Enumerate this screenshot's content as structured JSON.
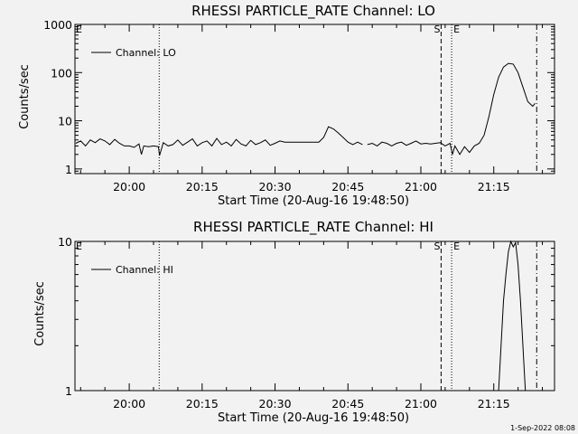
{
  "footer": {
    "timestamp": "1-Sep-2022 08:08"
  },
  "chart_data": [
    {
      "type": "line",
      "title": "RHESSI PARTICLE_RATE Channel: LO",
      "xlabel": "Start Time (20-Aug-16 19:48:50)",
      "ylabel": "Counts/sec",
      "yscale": "log",
      "ylim": [
        0.8,
        1000
      ],
      "y_ticks": [
        1,
        10,
        100,
        1000
      ],
      "y_tick_labels": [
        "1",
        "10",
        "100",
        "1000"
      ],
      "xlim": [
        "19:48:50",
        "21:27:30"
      ],
      "x_ticks": [
        "20:00",
        "20:15",
        "20:30",
        "20:45",
        "21:00",
        "21:15"
      ],
      "legend": {
        "position": "top-left",
        "entries": [
          "Channel: LO"
        ]
      },
      "markers": [
        {
          "label": "E",
          "time": "19:48:50",
          "style": "none"
        },
        {
          "label": "",
          "time": "20:06:10",
          "style": "dotted"
        },
        {
          "label": "S",
          "time": "21:04:10",
          "style": "dashed"
        },
        {
          "label": "E",
          "time": "21:06:20",
          "style": "dotted"
        },
        {
          "label": "",
          "time": "21:23:50",
          "style": "dashdot"
        }
      ],
      "series": [
        {
          "segments": [
            [
              [
                "19:49",
                3.4
              ],
              [
                "19:50",
                3.8
              ],
              [
                "19:51",
                3.0
              ],
              [
                "19:52",
                4.0
              ],
              [
                "19:53",
                3.5
              ],
              [
                "19:54",
                4.2
              ],
              [
                "19:55",
                3.8
              ],
              [
                "19:56",
                3.2
              ],
              [
                "19:57",
                4.1
              ],
              [
                "19:58",
                3.4
              ],
              [
                "19:59",
                3.0
              ],
              [
                "20:00",
                3.0
              ],
              [
                "20:01",
                2.8
              ],
              [
                "20:02",
                3.3
              ],
              [
                "20:02:30",
                2.0
              ],
              [
                "20:03",
                3.0
              ],
              [
                "20:04",
                2.9
              ],
              [
                "20:05",
                3.0
              ],
              [
                "20:06",
                2.9
              ],
              [
                "20:06:15",
                1.9
              ],
              [
                "20:07",
                3.5
              ],
              [
                "20:08",
                3.0
              ],
              [
                "20:09",
                3.2
              ],
              [
                "20:10",
                4.0
              ],
              [
                "20:11",
                3.1
              ],
              [
                "20:12",
                3.6
              ],
              [
                "20:13",
                4.2
              ],
              [
                "20:14",
                3.0
              ],
              [
                "20:15",
                3.5
              ],
              [
                "20:16",
                3.8
              ],
              [
                "20:17",
                3.0
              ],
              [
                "20:18",
                4.3
              ],
              [
                "20:19",
                3.2
              ],
              [
                "20:20",
                3.6
              ],
              [
                "20:21",
                3.0
              ],
              [
                "20:22",
                4.1
              ],
              [
                "20:23",
                3.3
              ],
              [
                "20:24",
                3.0
              ],
              [
                "20:25",
                3.9
              ],
              [
                "20:26",
                3.2
              ],
              [
                "20:27",
                3.5
              ],
              [
                "20:28",
                4.0
              ],
              [
                "20:29",
                3.1
              ],
              [
                "20:30",
                3.4
              ],
              [
                "20:31",
                3.8
              ],
              [
                "20:32",
                3.6
              ],
              [
                "20:33",
                3.6
              ],
              [
                "20:34",
                3.6
              ],
              [
                "20:35",
                3.6
              ],
              [
                "20:36",
                3.6
              ],
              [
                "20:37",
                3.6
              ],
              [
                "20:38",
                3.6
              ],
              [
                "20:39",
                3.6
              ],
              [
                "20:40",
                4.5
              ],
              [
                "20:41",
                7.5
              ],
              [
                "20:42",
                6.8
              ],
              [
                "20:43",
                5.6
              ],
              [
                "20:44",
                4.5
              ],
              [
                "20:45",
                3.6
              ],
              [
                "20:46",
                3.2
              ],
              [
                "20:47",
                3.6
              ],
              [
                "20:48",
                3.2
              ]
            ],
            [
              [
                "20:49",
                3.2
              ],
              [
                "20:50",
                3.4
              ],
              [
                "20:51",
                3.0
              ],
              [
                "20:52",
                3.6
              ],
              [
                "20:53",
                3.4
              ],
              [
                "20:54",
                3.0
              ],
              [
                "20:55",
                3.4
              ],
              [
                "20:56",
                3.6
              ],
              [
                "20:57",
                3.1
              ],
              [
                "20:58",
                3.4
              ],
              [
                "20:59",
                3.8
              ],
              [
                "21:00",
                3.3
              ],
              [
                "21:01",
                3.4
              ],
              [
                "21:02",
                3.3
              ],
              [
                "21:03",
                3.4
              ],
              [
                "21:04",
                3.5
              ],
              [
                "21:05",
                3.0
              ],
              [
                "21:06",
                3.4
              ],
              [
                "21:06:30",
                2.0
              ],
              [
                "21:07",
                3.0
              ],
              [
                "21:08",
                2.0
              ],
              [
                "21:09",
                2.9
              ],
              [
                "21:10",
                2.2
              ],
              [
                "21:11",
                3.0
              ],
              [
                "21:12",
                3.4
              ],
              [
                "21:13",
                5.0
              ],
              [
                "21:14",
                12
              ],
              [
                "21:15",
                35
              ],
              [
                "21:16",
                80
              ],
              [
                "21:17",
                130
              ],
              [
                "21:18",
                155
              ],
              [
                "21:19",
                150
              ],
              [
                "21:20",
                100
              ],
              [
                "21:21",
                50
              ],
              [
                "21:22",
                25
              ],
              [
                "21:23",
                20
              ],
              [
                "21:23:30",
                23
              ]
            ]
          ]
        }
      ]
    },
    {
      "type": "line",
      "title": "RHESSI PARTICLE_RATE Channel: HI",
      "xlabel": "Start Time (20-Aug-16 19:48:50)",
      "ylabel": "Counts/sec",
      "yscale": "log",
      "ylim": [
        1,
        10
      ],
      "y_ticks": [
        1,
        10
      ],
      "y_tick_labels": [
        "1",
        "10"
      ],
      "xlim": [
        "19:48:50",
        "21:27:30"
      ],
      "x_ticks": [
        "20:00",
        "20:15",
        "20:30",
        "20:45",
        "21:00",
        "21:15"
      ],
      "legend": {
        "position": "top-left",
        "entries": [
          "Channel: HI"
        ]
      },
      "markers": [
        {
          "label": "E",
          "time": "19:48:50",
          "style": "none"
        },
        {
          "label": "",
          "time": "20:06:10",
          "style": "dotted"
        },
        {
          "label": "S",
          "time": "21:04:10",
          "style": "dashed"
        },
        {
          "label": "E",
          "time": "21:06:20",
          "style": "dotted"
        },
        {
          "label": "",
          "time": "21:23:50",
          "style": "dashdot"
        }
      ],
      "series": [
        {
          "segments": [
            [
              [
                "21:16",
                1.0
              ],
              [
                "21:16:30",
                2.0
              ],
              [
                "21:17",
                4.0
              ],
              [
                "21:17:30",
                6.0
              ],
              [
                "21:18",
                8.5
              ],
              [
                "21:18:30",
                10
              ],
              [
                "21:19",
                9.2
              ],
              [
                "21:19:30",
                9.8
              ],
              [
                "21:20",
                7.0
              ],
              [
                "21:20:30",
                4.0
              ],
              [
                "21:21",
                2.0
              ],
              [
                "21:21:30",
                1.0
              ]
            ]
          ]
        }
      ]
    }
  ]
}
